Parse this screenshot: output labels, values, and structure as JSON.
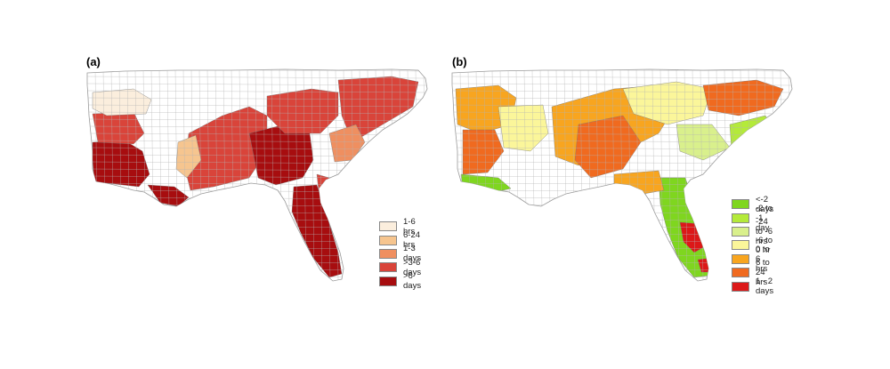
{
  "panel_a": {
    "label": "(a)",
    "legend": [
      {
        "label": "1-6 hrs",
        "color": "#fbeedd"
      },
      {
        "label": "6-24 hrs",
        "color": "#f6c58f"
      },
      {
        "label": "1-3 days",
        "color": "#ef8f60"
      },
      {
        "label": ">3-6 days",
        "color": "#d9443a"
      },
      {
        "label": ">6 days",
        "color": "#a70d0f"
      }
    ]
  },
  "panel_b": {
    "label": "(b)",
    "legend": [
      {
        "label": "<-2 days",
        "color": "#7fd61f"
      },
      {
        "label": "-2 to -1 day",
        "color": "#b4ea3a"
      },
      {
        "label": "-24 to -6 hrs",
        "color": "#d9f08c"
      },
      {
        "label": "-6 to 0 hr",
        "color": "#fbf69a"
      },
      {
        "label": "0 to 6 hrs",
        "color": "#f8a51f"
      },
      {
        "label": "6 to 24 hrs",
        "color": "#f06a1f"
      },
      {
        "label": "1 - 2 days",
        "color": "#dc1818"
      }
    ]
  },
  "colors": {
    "no_data": "#ffffff",
    "county_border": "#9a9a9a"
  }
}
